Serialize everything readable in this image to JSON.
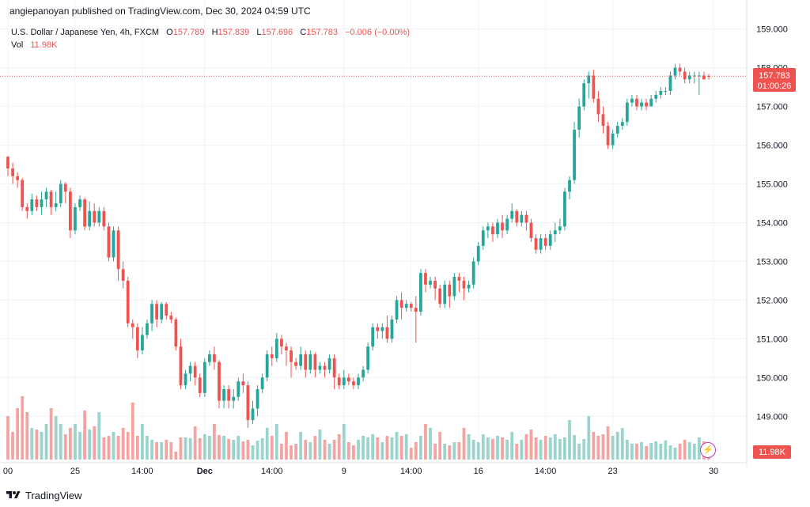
{
  "header": {
    "attribution": "angiepanoyan published on TradingView.com, Dec 30, 2024 04:59 UTC"
  },
  "legend": {
    "symbol": "U.S. Dollar / Japanese Yen, 4h, FXCM",
    "open_label": "O",
    "open": "157.789",
    "high_label": "H",
    "high": "157.839",
    "low_label": "L",
    "low": "157.696",
    "close_label": "C",
    "close": "157.783",
    "change": "−0.006 (−0.00%)",
    "vol_label": "Vol",
    "vol_value": "11.98K"
  },
  "price_tag": {
    "price": "157.783",
    "countdown": "01:00:26"
  },
  "volume_tag": "11.98K",
  "footer": {
    "brand": "TradingView"
  },
  "colors": {
    "up": "#26a69a",
    "down": "#ef5350",
    "vol_up": "#99d4cd",
    "vol_down": "#f5a3a1",
    "grid": "#f0f3fa",
    "text": "#131722",
    "price_line": "#ef5350"
  },
  "chart_data": {
    "type": "candlestick",
    "title": "U.S. Dollar / Japanese Yen, 4h, FXCM",
    "y_axis_side": "right",
    "ylim": [
      147.8,
      159.3
    ],
    "y_ticks": [
      149,
      150,
      151,
      152,
      153,
      154,
      155,
      156,
      157,
      158,
      159
    ],
    "y_tick_labels": [
      "149.000",
      "150.000",
      "151.000",
      "152.000",
      "153.000",
      "154.000",
      "155.000",
      "156.000",
      "157.000",
      "158.000",
      "159.000"
    ],
    "x_ticks": [
      {
        "label": "00",
        "bar": 0
      },
      {
        "label": "25",
        "bar": 14
      },
      {
        "label": "14:00",
        "bar": 28
      },
      {
        "label": "Dec",
        "bar": 41
      },
      {
        "label": "14:00",
        "bar": 55
      },
      {
        "label": "9",
        "bar": 70
      },
      {
        "label": "14:00",
        "bar": 84
      },
      {
        "label": "16",
        "bar": 98
      },
      {
        "label": "14:00",
        "bar": 112
      },
      {
        "label": "23",
        "bar": 126
      },
      {
        "label": "30",
        "bar": 147
      }
    ],
    "last_price": 157.783,
    "bars": [
      [
        155.7,
        155.4,
        155.72,
        155.2,
        0.55
      ],
      [
        155.4,
        155.2,
        155.55,
        155.0,
        0.35
      ],
      [
        155.2,
        155.1,
        155.3,
        154.9,
        0.65
      ],
      [
        155.1,
        154.4,
        155.15,
        154.3,
        0.8
      ],
      [
        154.4,
        154.3,
        154.5,
        154.1,
        0.6
      ],
      [
        154.3,
        154.6,
        154.75,
        154.2,
        0.4
      ],
      [
        154.6,
        154.4,
        154.7,
        154.3,
        0.38
      ],
      [
        154.4,
        154.6,
        154.8,
        154.2,
        0.35
      ],
      [
        154.6,
        154.8,
        154.9,
        154.4,
        0.45
      ],
      [
        154.8,
        154.4,
        154.85,
        154.2,
        0.65
      ],
      [
        154.4,
        154.5,
        154.8,
        154.3,
        0.55
      ],
      [
        154.5,
        155.0,
        155.1,
        154.4,
        0.45
      ],
      [
        155.0,
        154.8,
        155.05,
        154.5,
        0.32
      ],
      [
        154.8,
        153.8,
        154.9,
        153.6,
        0.4
      ],
      [
        153.8,
        154.4,
        154.5,
        153.7,
        0.45
      ],
      [
        154.4,
        154.6,
        154.7,
        154.3,
        0.35
      ],
      [
        154.6,
        153.9,
        154.65,
        153.8,
        0.62
      ],
      [
        153.9,
        154.3,
        154.55,
        153.8,
        0.38
      ],
      [
        154.3,
        154.0,
        154.5,
        153.9,
        0.42
      ],
      [
        154.0,
        154.3,
        154.4,
        153.9,
        0.6
      ],
      [
        154.3,
        153.9,
        154.4,
        153.8,
        0.28
      ],
      [
        153.9,
        153.1,
        154.0,
        153.0,
        0.3
      ],
      [
        153.1,
        153.8,
        153.9,
        153.0,
        0.35
      ],
      [
        153.8,
        152.8,
        153.9,
        152.5,
        0.3
      ],
      [
        152.8,
        152.5,
        153.0,
        152.3,
        0.4
      ],
      [
        152.5,
        151.4,
        152.6,
        151.3,
        0.35
      ],
      [
        151.4,
        151.3,
        151.5,
        151.0,
        0.72
      ],
      [
        151.3,
        150.7,
        151.4,
        150.5,
        0.3
      ],
      [
        150.7,
        151.1,
        151.3,
        150.6,
        0.45
      ],
      [
        151.1,
        151.4,
        151.5,
        151.0,
        0.3
      ],
      [
        151.4,
        151.9,
        152.0,
        151.2,
        0.25
      ],
      [
        151.9,
        151.5,
        152.0,
        151.3,
        0.22
      ],
      [
        151.5,
        151.9,
        151.95,
        151.4,
        0.22
      ],
      [
        151.9,
        151.6,
        151.95,
        151.5,
        0.25
      ],
      [
        151.6,
        151.5,
        151.7,
        151.4,
        0.22
      ],
      [
        151.5,
        150.8,
        151.55,
        150.7,
        0.1
      ],
      [
        150.8,
        149.8,
        151.0,
        149.7,
        0.28
      ],
      [
        149.8,
        150.1,
        150.2,
        149.7,
        0.28
      ],
      [
        150.1,
        150.3,
        150.4,
        149.9,
        0.27
      ],
      [
        150.3,
        150.0,
        150.4,
        149.8,
        0.42
      ],
      [
        150.0,
        149.6,
        150.1,
        149.5,
        0.27
      ],
      [
        149.6,
        150.4,
        150.5,
        149.5,
        0.32
      ],
      [
        150.4,
        150.6,
        150.7,
        150.3,
        0.3
      ],
      [
        150.6,
        150.4,
        150.8,
        150.2,
        0.45
      ],
      [
        150.4,
        149.4,
        150.45,
        149.2,
        0.31
      ],
      [
        149.4,
        149.7,
        149.8,
        149.2,
        0.3
      ],
      [
        149.7,
        149.4,
        149.8,
        149.2,
        0.26
      ],
      [
        149.4,
        149.5,
        149.7,
        149.2,
        0.25
      ],
      [
        149.5,
        149.9,
        150.0,
        149.4,
        0.3
      ],
      [
        149.9,
        149.8,
        150.1,
        149.6,
        0.23
      ],
      [
        149.8,
        148.9,
        149.9,
        148.7,
        0.25
      ],
      [
        148.9,
        149.2,
        149.4,
        148.8,
        0.18
      ],
      [
        149.2,
        149.7,
        149.8,
        149.0,
        0.24
      ],
      [
        149.7,
        150.0,
        150.1,
        149.6,
        0.27
      ],
      [
        150.0,
        150.6,
        150.7,
        149.9,
        0.4
      ],
      [
        150.6,
        150.5,
        150.8,
        150.3,
        0.3
      ],
      [
        150.5,
        151.0,
        151.15,
        150.4,
        0.45
      ],
      [
        151.0,
        150.8,
        151.1,
        150.6,
        0.2
      ],
      [
        150.8,
        150.7,
        150.9,
        150.3,
        0.35
      ],
      [
        150.7,
        150.4,
        150.8,
        150.0,
        0.18
      ],
      [
        150.4,
        150.3,
        150.5,
        150.2,
        0.2
      ],
      [
        150.3,
        150.6,
        150.8,
        150.2,
        0.35
      ],
      [
        150.6,
        150.2,
        150.7,
        150.0,
        0.25
      ],
      [
        150.2,
        150.6,
        150.7,
        150.1,
        0.22
      ],
      [
        150.6,
        150.2,
        150.65,
        150.0,
        0.3
      ],
      [
        150.2,
        150.3,
        150.4,
        150.1,
        0.38
      ],
      [
        150.3,
        150.2,
        150.4,
        150.0,
        0.25
      ],
      [
        150.2,
        150.5,
        150.6,
        150.1,
        0.2
      ],
      [
        150.5,
        150.0,
        150.6,
        149.7,
        0.25
      ],
      [
        150.0,
        149.8,
        150.1,
        149.7,
        0.32
      ],
      [
        149.8,
        150.0,
        150.2,
        149.7,
        0.45
      ],
      [
        150.0,
        149.9,
        150.1,
        149.8,
        0.22
      ],
      [
        149.9,
        149.8,
        150.0,
        149.7,
        0.18
      ],
      [
        149.8,
        150.0,
        150.1,
        149.7,
        0.25
      ],
      [
        150.0,
        150.2,
        150.3,
        149.9,
        0.3
      ],
      [
        150.2,
        150.8,
        150.9,
        150.1,
        0.28
      ],
      [
        150.8,
        151.3,
        151.4,
        150.7,
        0.32
      ],
      [
        151.3,
        151.2,
        151.4,
        151.0,
        0.28
      ],
      [
        151.2,
        151.3,
        151.4,
        151.0,
        0.22
      ],
      [
        151.3,
        151.0,
        151.6,
        150.9,
        0.3
      ],
      [
        151.0,
        151.5,
        151.6,
        150.9,
        0.28
      ],
      [
        151.5,
        152.0,
        152.1,
        151.4,
        0.35
      ],
      [
        152.0,
        151.8,
        152.2,
        151.5,
        0.3
      ],
      [
        151.8,
        151.9,
        152.0,
        151.7,
        0.32
      ],
      [
        151.9,
        151.8,
        151.95,
        151.7,
        0.15
      ],
      [
        151.8,
        151.7,
        152.1,
        150.9,
        0.22
      ],
      [
        151.7,
        152.7,
        152.8,
        151.6,
        0.3
      ],
      [
        152.7,
        152.4,
        152.8,
        152.2,
        0.45
      ],
      [
        152.4,
        152.5,
        152.6,
        152.3,
        0.4
      ],
      [
        152.5,
        152.3,
        152.6,
        152.0,
        0.2
      ],
      [
        152.3,
        151.9,
        152.4,
        151.8,
        0.35
      ],
      [
        151.9,
        152.4,
        152.5,
        151.8,
        0.2
      ],
      [
        152.4,
        152.1,
        152.5,
        151.8,
        0.18
      ],
      [
        152.1,
        152.6,
        152.7,
        152.0,
        0.22
      ],
      [
        152.6,
        152.5,
        152.7,
        152.2,
        0.22
      ],
      [
        152.5,
        152.3,
        152.6,
        152.0,
        0.4
      ],
      [
        152.3,
        152.4,
        152.5,
        152.2,
        0.32
      ],
      [
        152.4,
        153.0,
        153.1,
        152.3,
        0.25
      ],
      [
        153.0,
        153.4,
        153.5,
        152.9,
        0.22
      ],
      [
        153.4,
        153.8,
        153.9,
        153.3,
        0.32
      ],
      [
        153.8,
        153.9,
        154.0,
        153.6,
        0.28
      ],
      [
        153.9,
        153.7,
        154.0,
        153.5,
        0.26
      ],
      [
        153.7,
        154.0,
        154.1,
        153.6,
        0.3
      ],
      [
        154.0,
        153.8,
        154.2,
        153.6,
        0.28
      ],
      [
        153.8,
        154.1,
        154.2,
        153.7,
        0.25
      ],
      [
        154.1,
        154.3,
        154.5,
        154.0,
        0.35
      ],
      [
        154.3,
        154.0,
        154.35,
        153.9,
        0.2
      ],
      [
        154.0,
        154.2,
        154.3,
        153.9,
        0.25
      ],
      [
        154.2,
        154.0,
        154.3,
        153.8,
        0.32
      ],
      [
        154.0,
        153.6,
        154.1,
        153.5,
        0.38
      ],
      [
        153.6,
        153.3,
        153.7,
        153.2,
        0.28
      ],
      [
        153.3,
        153.6,
        153.7,
        153.2,
        0.25
      ],
      [
        153.6,
        153.4,
        153.7,
        153.3,
        0.3
      ],
      [
        153.4,
        153.7,
        153.8,
        153.3,
        0.28
      ],
      [
        153.7,
        153.8,
        154.0,
        153.5,
        0.32
      ],
      [
        153.8,
        153.9,
        154.1,
        153.7,
        0.26
      ],
      [
        153.9,
        154.8,
        154.9,
        153.8,
        0.28
      ],
      [
        154.8,
        155.1,
        155.2,
        154.6,
        0.5
      ],
      [
        155.1,
        156.4,
        156.6,
        155.0,
        0.31
      ],
      [
        156.4,
        157.0,
        157.2,
        156.2,
        0.2
      ],
      [
        157.0,
        157.6,
        157.7,
        156.9,
        0.26
      ],
      [
        157.6,
        157.8,
        157.9,
        157.2,
        0.55
      ],
      [
        157.8,
        157.2,
        157.95,
        157.1,
        0.35
      ],
      [
        157.2,
        156.8,
        157.4,
        156.6,
        0.3
      ],
      [
        156.8,
        156.5,
        157.0,
        156.3,
        0.32
      ],
      [
        156.5,
        156.0,
        156.6,
        155.9,
        0.42
      ],
      [
        156.0,
        156.3,
        156.4,
        155.9,
        0.3
      ],
      [
        156.3,
        156.5,
        156.6,
        156.2,
        0.35
      ],
      [
        156.5,
        156.6,
        156.7,
        156.4,
        0.4
      ],
      [
        156.6,
        157.1,
        157.2,
        156.5,
        0.25
      ],
      [
        157.1,
        157.2,
        157.3,
        157.0,
        0.2
      ],
      [
        157.2,
        157.0,
        157.3,
        156.9,
        0.2
      ],
      [
        157.0,
        157.1,
        157.2,
        156.9,
        0.22
      ],
      [
        157.1,
        157.0,
        157.2,
        156.9,
        0.17
      ],
      [
        157.0,
        157.2,
        157.3,
        157.0,
        0.21
      ],
      [
        157.2,
        157.3,
        157.4,
        157.1,
        0.23
      ],
      [
        157.3,
        157.4,
        157.5,
        157.2,
        0.2
      ],
      [
        157.4,
        157.4,
        157.5,
        157.3,
        0.24
      ],
      [
        157.4,
        157.8,
        157.9,
        157.3,
        0.18
      ],
      [
        157.8,
        158.0,
        158.1,
        157.7,
        0.15
      ],
      [
        158.0,
        157.9,
        158.1,
        157.8,
        0.2
      ],
      [
        157.9,
        157.7,
        158.0,
        157.6,
        0.25
      ],
      [
        157.7,
        157.8,
        157.9,
        157.6,
        0.22
      ],
      [
        157.8,
        157.8,
        157.9,
        157.6,
        0.2
      ],
      [
        157.8,
        157.8,
        157.9,
        157.3,
        0.28
      ],
      [
        157.8,
        157.7,
        157.9,
        157.7,
        0.23
      ],
      [
        157.789,
        157.783,
        157.839,
        157.696,
        0.11
      ]
    ]
  }
}
